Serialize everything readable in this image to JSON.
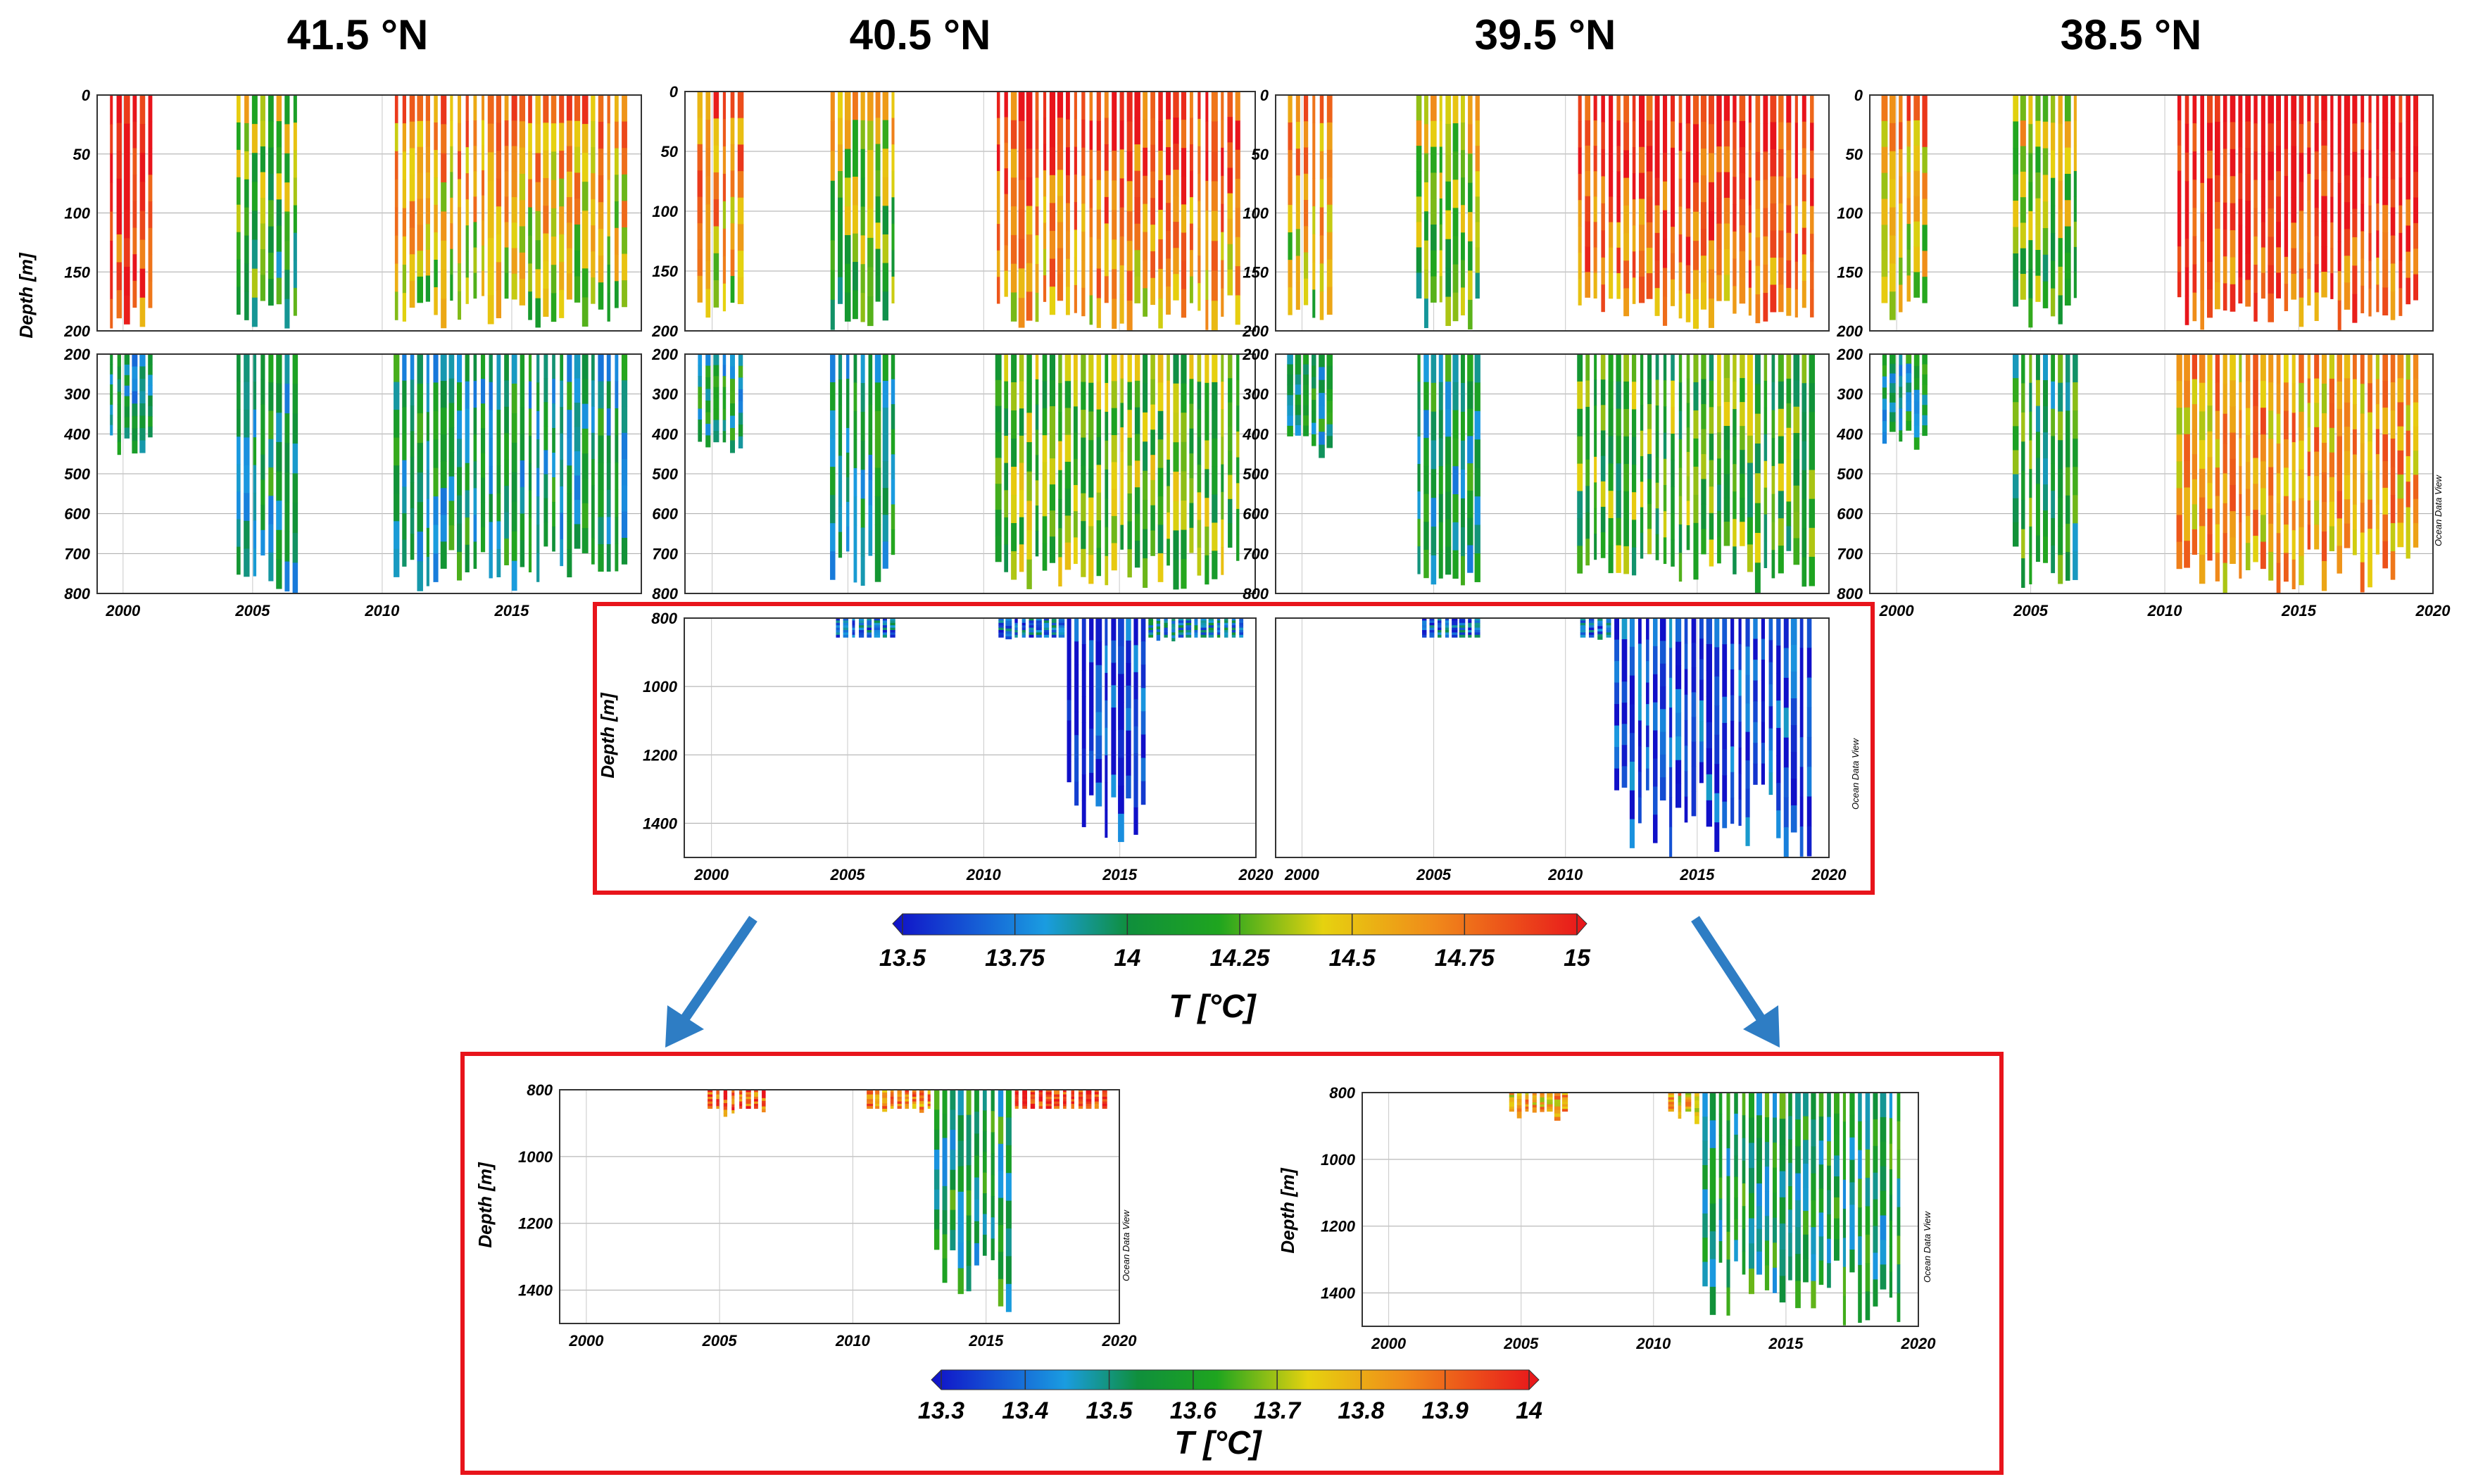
{
  "colors": {
    "highlight_box": "#e8141b",
    "arrow": "#2e7dc4",
    "grid": "#9a9a9a",
    "frame": "#333333"
  },
  "chart_data": [
    {
      "id": "p41_upper",
      "type": "heatmap",
      "title": "41.5 °N",
      "ylabel": "Depth [m]",
      "xlim": [
        1999,
        2020
      ],
      "ylim": [
        0,
        200
      ],
      "yticks": [
        0,
        50,
        100,
        150,
        200
      ],
      "xticks": [],
      "cmap": "A",
      "vmin": 13.5,
      "vmax": 15,
      "casts": [
        [
          1999.4,
          2001.2,
          200,
          14.9
        ],
        [
          2004.3,
          2006.8,
          200,
          14.2
        ],
        [
          2010.4,
          2019.5,
          200,
          14.5
        ]
      ]
    },
    {
      "id": "p41_lower",
      "type": "heatmap",
      "ylabel": "",
      "xlim": [
        1999,
        2020
      ],
      "ylim": [
        200,
        800
      ],
      "yticks": [
        200,
        300,
        400,
        500,
        600,
        700,
        800
      ],
      "xticks": [
        2000,
        2005,
        2010,
        2015
      ],
      "cmap": "A",
      "vmin": 13.5,
      "vmax": 15,
      "casts": [
        [
          1999.4,
          2001.2,
          460,
          13.95
        ],
        [
          2004.3,
          2006.8,
          800,
          14.0
        ],
        [
          2010.4,
          2019.5,
          800,
          14.0
        ]
      ]
    },
    {
      "id": "p40_upper",
      "type": "heatmap",
      "title": "40.5 °N",
      "xlim": [
        1999,
        2020
      ],
      "ylim": [
        0,
        200
      ],
      "yticks": [
        0,
        50,
        100,
        150,
        200
      ],
      "xticks": [],
      "cmap": "A",
      "vmin": 13.5,
      "vmax": 15,
      "casts": [
        [
          1999.4,
          2001.2,
          200,
          14.6
        ],
        [
          2004.3,
          2006.8,
          200,
          14.3
        ],
        [
          2010.4,
          2019.5,
          200,
          14.7
        ]
      ]
    },
    {
      "id": "p40_lower",
      "type": "heatmap",
      "xlim": [
        1999,
        2020
      ],
      "ylim": [
        200,
        800
      ],
      "yticks": [
        200,
        300,
        400,
        500,
        600,
        700,
        800
      ],
      "xticks": [],
      "cmap": "A",
      "vmin": 13.5,
      "vmax": 15,
      "casts": [
        [
          1999.4,
          2001.2,
          460,
          14.0
        ],
        [
          2004.3,
          2006.8,
          800,
          14.0
        ],
        [
          2010.4,
          2019.5,
          800,
          14.25
        ]
      ]
    },
    {
      "id": "p39_upper",
      "type": "heatmap",
      "title": "39.5 °N",
      "xlim": [
        1999,
        2020
      ],
      "ylim": [
        0,
        200
      ],
      "yticks": [
        0,
        50,
        100,
        150,
        200
      ],
      "xticks": [],
      "cmap": "A",
      "vmin": 13.5,
      "vmax": 15,
      "casts": [
        [
          1999.4,
          2001.2,
          200,
          14.5
        ],
        [
          2004.3,
          2006.8,
          200,
          14.3
        ],
        [
          2010.4,
          2019.5,
          200,
          14.8
        ]
      ]
    },
    {
      "id": "p39_lower",
      "type": "heatmap",
      "xlim": [
        1999,
        2020
      ],
      "ylim": [
        200,
        800
      ],
      "yticks": [
        200,
        300,
        400,
        500,
        600,
        700,
        800
      ],
      "xticks": [],
      "cmap": "A",
      "vmin": 13.5,
      "vmax": 15,
      "casts": [
        [
          1999.4,
          2001.2,
          460,
          14.0
        ],
        [
          2004.3,
          2006.8,
          800,
          14.0
        ],
        [
          2010.4,
          2019.5,
          800,
          14.2
        ]
      ]
    },
    {
      "id": "p38_upper",
      "type": "heatmap",
      "title": "38.5 °N",
      "xlim": [
        1999,
        2020
      ],
      "ylim": [
        0,
        200
      ],
      "yticks": [
        0,
        50,
        100,
        150,
        200
      ],
      "xticks": [],
      "cmap": "A",
      "vmin": 13.5,
      "vmax": 15,
      "casts": [
        [
          1999.4,
          2001.2,
          200,
          14.5
        ],
        [
          2004.3,
          2006.8,
          200,
          14.3
        ],
        [
          2010.4,
          2019.5,
          200,
          14.9
        ]
      ]
    },
    {
      "id": "p38_lower",
      "type": "heatmap",
      "xlim": [
        1999,
        2020
      ],
      "ylim": [
        200,
        800
      ],
      "yticks": [
        200,
        300,
        400,
        500,
        600,
        700,
        800
      ],
      "xticks": [
        2000,
        2005,
        2010,
        2015,
        2020
      ],
      "cmap": "A",
      "vmin": 13.5,
      "vmax": 15,
      "casts": [
        [
          1999.4,
          2001.2,
          460,
          14.0
        ],
        [
          2004.3,
          2006.8,
          800,
          14.1
        ],
        [
          2010.4,
          2019.5,
          800,
          14.6
        ]
      ]
    },
    {
      "id": "d40",
      "type": "heatmap",
      "ylabel": "Depth [m]",
      "xlim": [
        1999,
        2020
      ],
      "ylim": [
        800,
        1500
      ],
      "yticks": [
        800,
        1000,
        1200,
        1400
      ],
      "xticks": [
        2000,
        2005,
        2010,
        2015,
        2020
      ],
      "cmap": "A",
      "vmin": 13.5,
      "vmax": 15,
      "casts": [
        [
          2004.5,
          2006.8,
          880,
          13.75
        ],
        [
          2010.5,
          2013.0,
          870,
          13.75
        ],
        [
          2013.0,
          2016.0,
          1500,
          13.55
        ],
        [
          2016.0,
          2019.6,
          870,
          13.85
        ]
      ]
    },
    {
      "id": "d39",
      "type": "heatmap",
      "xlim": [
        1999,
        2020
      ],
      "ylim": [
        800,
        1500
      ],
      "yticks": [],
      "xticks": [
        2000,
        2005,
        2010,
        2015,
        2020
      ],
      "cmap": "A",
      "vmin": 13.5,
      "vmax": 15,
      "casts": [
        [
          2004.5,
          2006.8,
          880,
          13.75
        ],
        [
          2010.5,
          2011.8,
          880,
          13.75
        ],
        [
          2011.8,
          2019.4,
          1500,
          13.6
        ]
      ]
    },
    {
      "id": "z40",
      "type": "heatmap",
      "ylabel": "Depth [m]",
      "xlim": [
        1999,
        2020
      ],
      "ylim": [
        800,
        1500
      ],
      "yticks": [
        800,
        1000,
        1200,
        1400
      ],
      "xticks": [
        2000,
        2005,
        2010,
        2015,
        2020
      ],
      "cmap": "B",
      "vmin": 13.3,
      "vmax": 14,
      "casts": [
        [
          2004.5,
          2006.8,
          880,
          13.9
        ],
        [
          2010.5,
          2013.0,
          870,
          13.85
        ],
        [
          2013.0,
          2016.0,
          1500,
          13.55
        ],
        [
          2016.0,
          2019.6,
          870,
          13.95
        ]
      ]
    },
    {
      "id": "z39",
      "type": "heatmap",
      "ylabel": "Depth [m]",
      "xlim": [
        1999,
        2020
      ],
      "ylim": [
        800,
        1500
      ],
      "yticks": [
        800,
        1000,
        1200,
        1400
      ],
      "xticks": [
        2000,
        2005,
        2010,
        2015,
        2020
      ],
      "cmap": "B",
      "vmin": 13.3,
      "vmax": 14,
      "casts": [
        [
          2004.5,
          2006.8,
          900,
          13.8
        ],
        [
          2010.5,
          2011.8,
          900,
          13.8
        ],
        [
          2011.8,
          2019.4,
          1500,
          13.55
        ]
      ]
    }
  ],
  "colorbar_main": {
    "label": "T [°C]",
    "ticks": [
      "13.5",
      "13.75",
      "14",
      "14.25",
      "14.5",
      "14.75",
      "15"
    ]
  },
  "colorbar_zoom": {
    "label": "T [°C]",
    "ticks": [
      "13.3",
      "13.4",
      "13.5",
      "13.6",
      "13.7",
      "13.8",
      "13.9",
      "14"
    ]
  },
  "watermark": "Ocean Data View"
}
